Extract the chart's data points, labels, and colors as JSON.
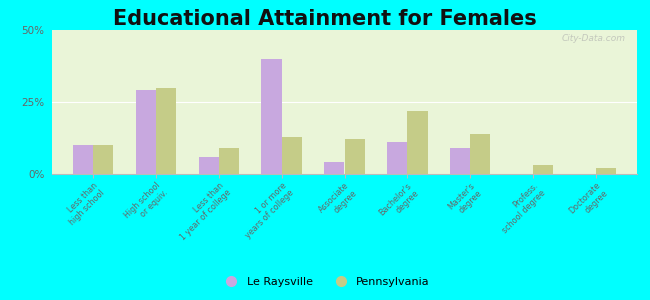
{
  "title": "Educational Attainment for Females",
  "categories": [
    "Less than\nhigh school",
    "High school\nor equiv.",
    "Less than\n1 year of college",
    "1 or more\nyears of college",
    "Associate\ndegree",
    "Bachelor's\ndegree",
    "Master's\ndegree",
    "Profess.\nschool degree",
    "Doctorate\ndegree"
  ],
  "le_raysville": [
    10.0,
    29.0,
    6.0,
    40.0,
    4.0,
    11.0,
    9.0,
    0.0,
    0.0
  ],
  "pennsylvania": [
    10.0,
    30.0,
    9.0,
    13.0,
    12.0,
    22.0,
    14.0,
    3.0,
    2.0
  ],
  "le_raysville_color": "#c8a8df",
  "pennsylvania_color": "#c5cc88",
  "background_color": "#eaf5d8",
  "outer_background": "#00ffff",
  "ylim": [
    0,
    50
  ],
  "yticks": [
    0,
    25,
    50
  ],
  "ytick_labels": [
    "0%",
    "25%",
    "50%"
  ],
  "legend_le_raysville": "Le Raysville",
  "legend_pennsylvania": "Pennsylvania",
  "watermark": "City-Data.com",
  "title_fontsize": 15,
  "bar_width": 0.32
}
